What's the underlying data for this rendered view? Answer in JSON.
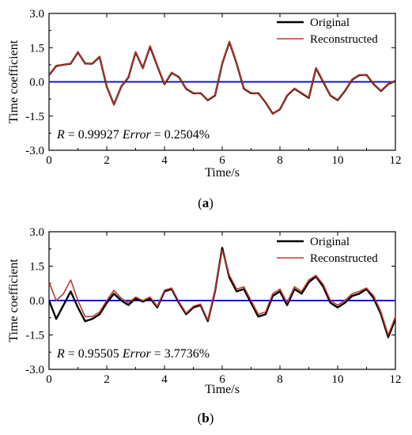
{
  "chart_data": [
    {
      "type": "line",
      "xlabel": "Time/s",
      "ylabel": "Time coefficient",
      "xlim": [
        0,
        12
      ],
      "ylim": [
        -3.0,
        3.0
      ],
      "xticks": [
        "0",
        "2",
        "4",
        "6",
        "8",
        "10",
        "12"
      ],
      "yticks": [
        "3.0",
        "1.5",
        "0.0",
        "-1.5",
        "-3.0"
      ],
      "legend_position": "top-right",
      "annotation": {
        "r_var": "R",
        "r_eq": " = 0.99927",
        "err_var": "Error",
        "err_eq": " = 0.2504%"
      },
      "caption": {
        "open": "(",
        "letter": "a",
        "close": ")"
      },
      "series": [
        {
          "name": "Original",
          "color": "#000000",
          "x": [
            0,
            0.25,
            0.5,
            0.75,
            1.0,
            1.25,
            1.5,
            1.75,
            2.0,
            2.25,
            2.5,
            2.75,
            3.0,
            3.25,
            3.5,
            3.75,
            4.0,
            4.25,
            4.5,
            4.75,
            5.0,
            5.25,
            5.5,
            5.75,
            6.0,
            6.25,
            6.5,
            6.75,
            7.0,
            7.25,
            7.5,
            7.75,
            8.0,
            8.25,
            8.5,
            8.75,
            9.0,
            9.25,
            9.5,
            9.75,
            10.0,
            10.25,
            10.5,
            10.75,
            11.0,
            11.25,
            11.5,
            11.75,
            12.0
          ],
          "y": [
            0.3,
            0.7,
            0.75,
            0.8,
            1.3,
            0.8,
            0.8,
            1.1,
            -0.2,
            -1.0,
            -0.2,
            0.2,
            1.3,
            0.6,
            1.55,
            0.7,
            -0.1,
            0.4,
            0.2,
            -0.3,
            -0.5,
            -0.5,
            -0.8,
            -0.6,
            0.8,
            1.75,
            0.8,
            -0.3,
            -0.5,
            -0.5,
            -0.9,
            -1.4,
            -1.2,
            -0.6,
            -0.3,
            -0.5,
            -0.7,
            0.6,
            0.0,
            -0.6,
            -0.8,
            -0.4,
            0.1,
            0.3,
            0.3,
            -0.1,
            -0.4,
            -0.1,
            0.05
          ]
        },
        {
          "name": "Reconstructed",
          "color": "#c0392b",
          "x": [
            0,
            0.25,
            0.5,
            0.75,
            1.0,
            1.25,
            1.5,
            1.75,
            2.0,
            2.25,
            2.5,
            2.75,
            3.0,
            3.25,
            3.5,
            3.75,
            4.0,
            4.25,
            4.5,
            4.75,
            5.0,
            5.25,
            5.5,
            5.75,
            6.0,
            6.25,
            6.5,
            6.75,
            7.0,
            7.25,
            7.5,
            7.75,
            8.0,
            8.25,
            8.5,
            8.75,
            9.0,
            9.25,
            9.5,
            9.75,
            10.0,
            10.25,
            10.5,
            10.75,
            11.0,
            11.25,
            11.5,
            11.75,
            12.0
          ],
          "y": [
            0.32,
            0.72,
            0.74,
            0.82,
            1.32,
            0.78,
            0.82,
            1.12,
            -0.18,
            -1.02,
            -0.18,
            0.22,
            1.32,
            0.58,
            1.58,
            0.72,
            -0.08,
            0.42,
            0.18,
            -0.28,
            -0.48,
            -0.52,
            -0.78,
            -0.58,
            0.82,
            1.78,
            0.82,
            -0.28,
            -0.48,
            -0.52,
            -0.88,
            -1.42,
            -1.18,
            -0.58,
            -0.28,
            -0.48,
            -0.68,
            0.62,
            0.02,
            -0.58,
            -0.78,
            -0.38,
            0.12,
            0.32,
            0.28,
            -0.08,
            -0.38,
            -0.08,
            0.06
          ]
        },
        {
          "name": "",
          "color": "#1515c8",
          "x": [
            0,
            12
          ],
          "y": [
            0.0,
            0.0
          ]
        }
      ]
    },
    {
      "type": "line",
      "xlabel": "Time/s",
      "ylabel": "Time coefficient",
      "xlim": [
        0,
        12
      ],
      "ylim": [
        -3.0,
        3.0
      ],
      "xticks": [
        "0",
        "2",
        "4",
        "6",
        "8",
        "10",
        "12"
      ],
      "yticks": [
        "3.0",
        "1.5",
        "0.0",
        "-1.5",
        "-3.0"
      ],
      "legend_position": "top-right",
      "annotation": {
        "r_var": "R",
        "r_eq": " = 0.95505",
        "err_var": "Error",
        "err_eq": " = 3.7736%"
      },
      "caption": {
        "open": "(",
        "letter": "b",
        "close": ")"
      },
      "series": [
        {
          "name": "Original",
          "color": "#000000",
          "x": [
            0,
            0.25,
            0.5,
            0.75,
            1.0,
            1.25,
            1.5,
            1.75,
            2.0,
            2.25,
            2.5,
            2.75,
            3.0,
            3.25,
            3.5,
            3.75,
            4.0,
            4.25,
            4.5,
            4.75,
            5.0,
            5.25,
            5.5,
            5.75,
            6.0,
            6.25,
            6.5,
            6.75,
            7.0,
            7.25,
            7.5,
            7.75,
            8.0,
            8.25,
            8.5,
            8.75,
            9.0,
            9.25,
            9.5,
            9.75,
            10.0,
            10.25,
            10.5,
            10.75,
            11.0,
            11.25,
            11.5,
            11.75,
            12.0
          ],
          "y": [
            0.0,
            -0.8,
            -0.2,
            0.4,
            -0.3,
            -0.9,
            -0.8,
            -0.6,
            -0.1,
            0.3,
            0.0,
            -0.2,
            0.1,
            -0.05,
            0.1,
            -0.3,
            0.4,
            0.5,
            -0.1,
            -0.6,
            -0.3,
            -0.2,
            -0.9,
            0.4,
            2.3,
            1.0,
            0.4,
            0.5,
            -0.1,
            -0.7,
            -0.6,
            0.2,
            0.4,
            -0.2,
            0.5,
            0.3,
            0.8,
            1.05,
            0.6,
            -0.1,
            -0.3,
            -0.1,
            0.2,
            0.3,
            0.5,
            0.1,
            -0.6,
            -1.6,
            -0.8
          ]
        },
        {
          "name": "Reconstructed",
          "color": "#c0392b",
          "x": [
            0,
            0.25,
            0.5,
            0.75,
            1.0,
            1.25,
            1.5,
            1.75,
            2.0,
            2.25,
            2.5,
            2.75,
            3.0,
            3.25,
            3.5,
            3.75,
            4.0,
            4.25,
            4.5,
            4.75,
            5.0,
            5.25,
            5.5,
            5.75,
            6.0,
            6.25,
            6.5,
            6.75,
            7.0,
            7.25,
            7.5,
            7.75,
            8.0,
            8.25,
            8.5,
            8.75,
            9.0,
            9.25,
            9.5,
            9.75,
            10.0,
            10.25,
            10.5,
            10.75,
            11.0,
            11.25,
            11.5,
            11.75,
            12.0
          ],
          "y": [
            0.8,
            0.0,
            0.3,
            0.9,
            0.0,
            -0.7,
            -0.7,
            -0.5,
            0.0,
            0.45,
            0.1,
            -0.1,
            0.15,
            0.0,
            0.15,
            -0.25,
            0.45,
            0.55,
            -0.05,
            -0.55,
            -0.25,
            -0.15,
            -0.85,
            0.45,
            2.2,
            1.1,
            0.5,
            0.6,
            0.0,
            -0.6,
            -0.5,
            0.3,
            0.5,
            -0.1,
            0.6,
            0.4,
            0.9,
            1.1,
            0.7,
            0.0,
            -0.2,
            0.0,
            0.3,
            0.4,
            0.55,
            0.2,
            -0.5,
            -1.5,
            -0.7
          ]
        },
        {
          "name": "",
          "color": "#1515c8",
          "x": [
            0,
            12
          ],
          "y": [
            0.0,
            0.0
          ]
        }
      ]
    }
  ]
}
